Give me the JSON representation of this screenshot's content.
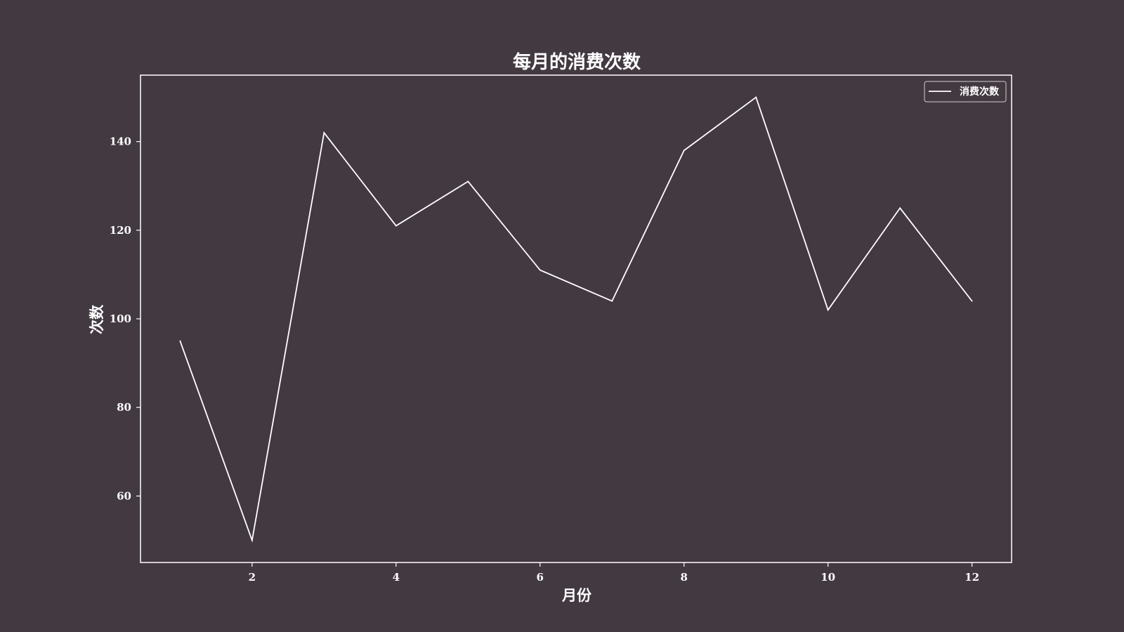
{
  "chart_data": {
    "type": "line",
    "title": "每月的消费次数",
    "xlabel": "月份",
    "ylabel": "次数",
    "x": [
      1,
      2,
      3,
      4,
      5,
      6,
      7,
      8,
      9,
      10,
      11,
      12
    ],
    "series": [
      {
        "name": "消费次数",
        "values": [
          95,
          50,
          142,
          121,
          131,
          111,
          104,
          138,
          150,
          102,
          125,
          104
        ]
      }
    ],
    "xlim": [
      0.45,
      12.55
    ],
    "ylim": [
      45,
      155
    ],
    "xticks": [
      2,
      4,
      6,
      8,
      10,
      12
    ],
    "yticks": [
      60,
      80,
      100,
      120,
      140
    ],
    "grid": false,
    "legend_position": "upper right"
  },
  "colors": {
    "background": "#433941",
    "foreground": "#ffffff",
    "line": "#ffffff"
  }
}
